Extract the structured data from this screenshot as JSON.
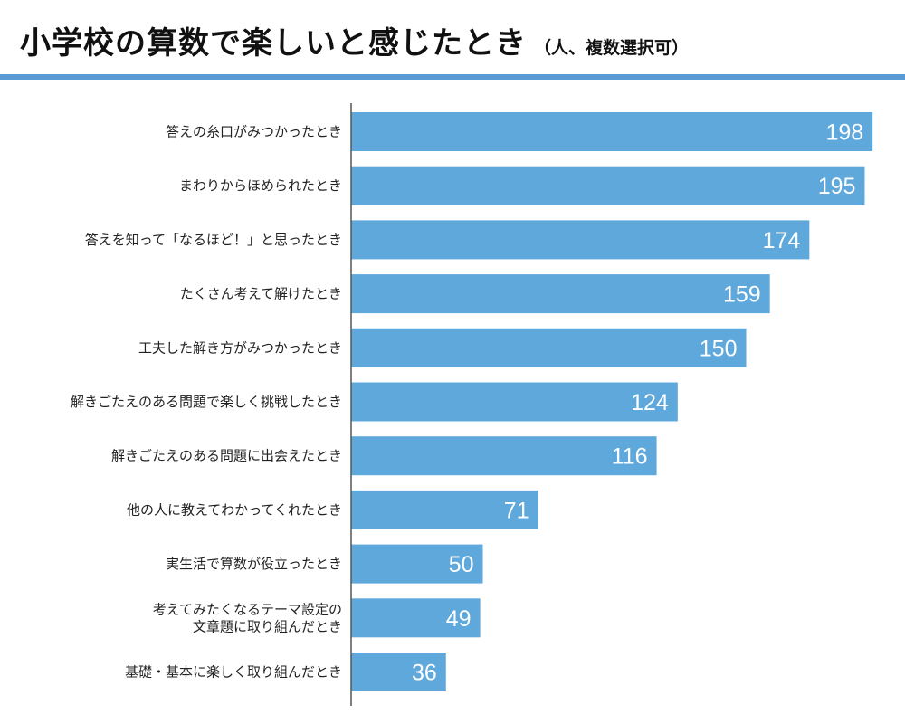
{
  "header": {
    "title": "小学校の算数で楽しいと感じたとき",
    "subtitle": "（人、複数選択可）"
  },
  "colors": {
    "bar": "#5ea8dc",
    "accent_rule": "#5b9bd5",
    "axis": "#555555"
  },
  "chart_data": {
    "type": "bar",
    "orientation": "horizontal",
    "title": "小学校の算数で楽しいと感じたとき",
    "subtitle": "（人、複数選択可）",
    "categories": [
      [
        "答えの糸口がみつかったとき"
      ],
      [
        "まわりからほめられたとき"
      ],
      [
        "答えを知って「なるほど！」と思ったとき"
      ],
      [
        "たくさん考えて解けたとき"
      ],
      [
        "工夫した解き方がみつかったとき"
      ],
      [
        "解きごたえのある問題で楽しく挑戦したとき"
      ],
      [
        "解きごたえのある問題に出会えたとき"
      ],
      [
        "他の人に教えてわかってくれたとき"
      ],
      [
        "実生活で算数が役立ったとき"
      ],
      [
        "考えてみたくなるテーマ設定の",
        "文章題に取り組んだとき"
      ],
      [
        "基礎・基本に楽しく取り組んだとき"
      ]
    ],
    "values": [
      198,
      195,
      174,
      159,
      150,
      124,
      116,
      71,
      50,
      49,
      36
    ],
    "xlim": [
      0,
      200
    ],
    "grid": false,
    "legend": "none",
    "data_labels": "inside-end"
  }
}
